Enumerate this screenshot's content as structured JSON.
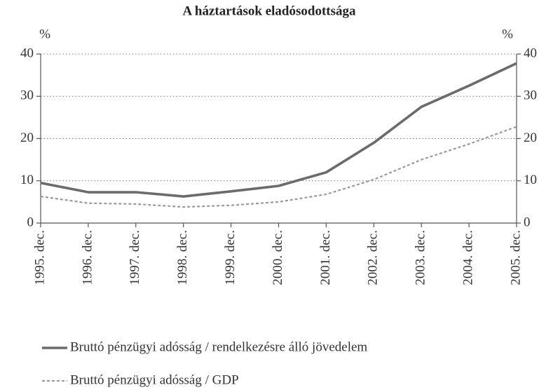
{
  "chart_data": {
    "type": "line",
    "title": "A háztartások eladósodottsága",
    "ylabel": "%",
    "y2label": "%",
    "categories": [
      "1995. dec.",
      "1996. dec.",
      "1997. dec.",
      "1998. dec.",
      "1999. dec.",
      "2000. dec.",
      "2001. dec.",
      "2002. dec.",
      "2003. dec.",
      "2004. dec.",
      "2005. dec."
    ],
    "series": [
      {
        "name": "Bruttó pénzügyi adósság / rendelkezésre álló jövedelem",
        "color": "#6b6b6b",
        "style": "solid",
        "values": [
          9.5,
          7.3,
          7.3,
          6.3,
          7.5,
          8.8,
          12,
          19,
          27.5,
          32.5,
          37.8
        ]
      },
      {
        "name": "Bruttó pénzügyi adósság / GDP",
        "color": "#9a9a9a",
        "style": "dotted",
        "values": [
          6.3,
          4.7,
          4.5,
          3.8,
          4.2,
          5,
          6.8,
          10.3,
          15,
          18.7,
          22.8
        ]
      }
    ],
    "ylim": [
      0,
      40
    ],
    "yticks": [
      0,
      10,
      20,
      30,
      40
    ],
    "y2lim": [
      0,
      40
    ],
    "y2ticks": [
      0,
      10,
      20,
      30,
      40
    ],
    "grid": true
  }
}
